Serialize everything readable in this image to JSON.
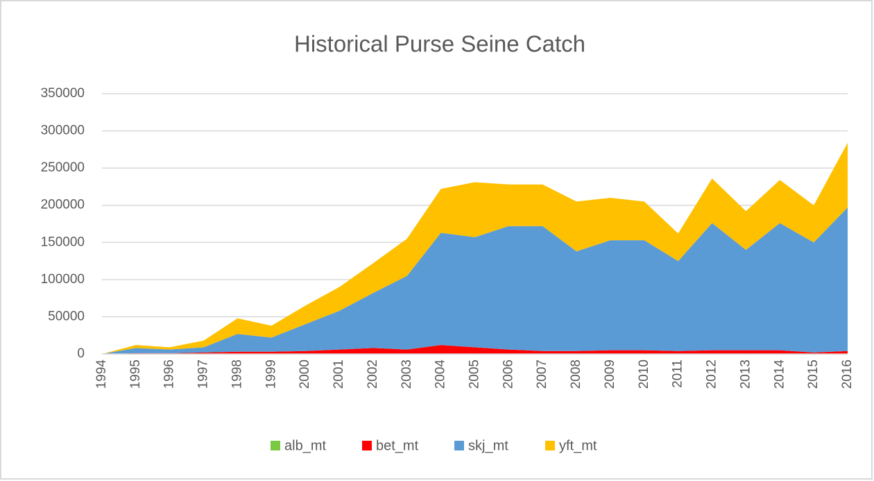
{
  "chart_data": {
    "type": "area",
    "stacked": true,
    "title": "Historical Purse Seine Catch",
    "categories": [
      "1994",
      "1995",
      "1996",
      "1997",
      "1998",
      "1999",
      "2000",
      "2001",
      "2002",
      "2003",
      "2004",
      "2005",
      "2006",
      "2007",
      "2008",
      "2009",
      "2010",
      "2011",
      "2012",
      "2013",
      "2014",
      "2015",
      "2016"
    ],
    "series": [
      {
        "name": "alb_mt",
        "color": "#7ac943",
        "values": [
          0,
          0,
          0,
          0,
          0,
          0,
          0,
          0,
          0,
          0,
          0,
          0,
          0,
          0,
          0,
          0,
          0,
          0,
          0,
          0,
          0,
          0,
          0
        ]
      },
      {
        "name": "bet_mt",
        "color": "#ff0000",
        "values": [
          0,
          1000,
          1000,
          2000,
          3000,
          3000,
          4000,
          6000,
          8000,
          6000,
          12000,
          9000,
          6000,
          4000,
          4000,
          5000,
          5000,
          4000,
          5000,
          5000,
          5000,
          2000,
          4000
        ]
      },
      {
        "name": "skj_mt",
        "color": "#5b9bd5",
        "values": [
          0,
          7000,
          5000,
          7000,
          24000,
          19000,
          36000,
          52000,
          74000,
          99000,
          151000,
          148000,
          166000,
          168000,
          134000,
          148000,
          148000,
          121000,
          171000,
          135000,
          171000,
          148000,
          193000
        ]
      },
      {
        "name": "yft_mt",
        "color": "#ffc000",
        "values": [
          0,
          4000,
          3000,
          9000,
          21000,
          16000,
          25000,
          32000,
          40000,
          50000,
          59000,
          74000,
          56000,
          56000,
          67000,
          57000,
          52000,
          37000,
          60000,
          52000,
          58000,
          50000,
          87000
        ]
      }
    ],
    "ylim": [
      0,
      350000
    ],
    "yticks": [
      0,
      50000,
      100000,
      150000,
      200000,
      250000,
      300000,
      350000
    ],
    "grid": true,
    "legend": "bottom"
  }
}
